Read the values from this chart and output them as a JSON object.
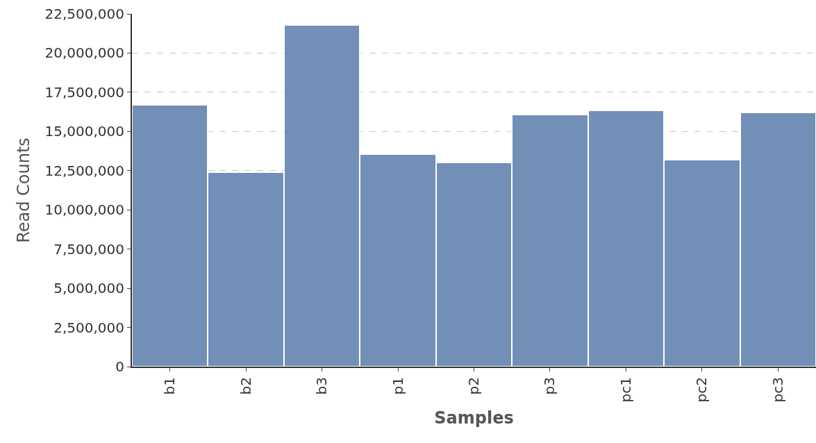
{
  "chart_data": {
    "type": "bar",
    "xlabel": "Samples",
    "ylabel": "Read Counts",
    "categories": [
      "b1",
      "b2",
      "b3",
      "p1",
      "p2",
      "p3",
      "pc1",
      "pc2",
      "pc3"
    ],
    "values": [
      16700000,
      12400000,
      21800000,
      13550000,
      13000000,
      16100000,
      16350000,
      13200000,
      16200000
    ],
    "color": "#728fb8",
    "ylim": [
      0,
      22500000
    ],
    "yticks": [
      {
        "value": 0,
        "label": "0"
      },
      {
        "value": 2500000,
        "label": "2,500,000"
      },
      {
        "value": 5000000,
        "label": "5,000,000"
      },
      {
        "value": 7500000,
        "label": "7,500,000"
      },
      {
        "value": 10000000,
        "label": "10,000,000"
      },
      {
        "value": 12500000,
        "label": "12,500,000"
      },
      {
        "value": 15000000,
        "label": "15,000,000"
      },
      {
        "value": 17500000,
        "label": "17,500,000"
      },
      {
        "value": 20000000,
        "label": "20,000,000"
      },
      {
        "value": 22500000,
        "label": "22,500,000"
      }
    ],
    "grid": "y"
  }
}
